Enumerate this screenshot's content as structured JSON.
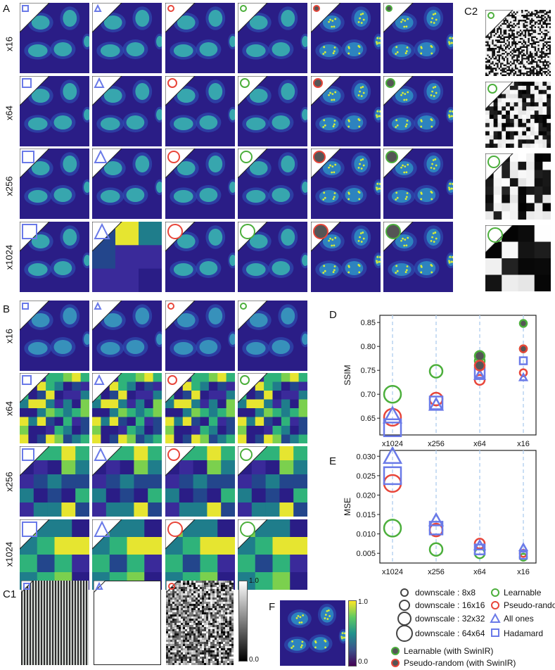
{
  "panels": {
    "A": "A",
    "B": "B",
    "C1": "C1",
    "C2": "C2",
    "D": "D",
    "E": "E",
    "F": "F"
  },
  "rows_A": [
    "x16",
    "x64",
    "x256",
    "x1024"
  ],
  "rows_B": [
    "x16",
    "x64",
    "x256",
    "x1024"
  ],
  "colorbar_gray": {
    "max": "1.0",
    "min": "0.0"
  },
  "colorbar_viridis": {
    "max": "1.0",
    "min": "0.0"
  },
  "legend": {
    "sizes": [
      "downscale : 8x8",
      "downscale : 16x16",
      "downscale : 32x32",
      "downscale : 64x64"
    ],
    "methods": [
      "Learnable",
      "Pseudo-random",
      "All ones",
      "Hadamard"
    ],
    "swin": [
      "Learnable (with SwinIR)",
      "Pseudo-random (with SwinIR)"
    ]
  },
  "colors": {
    "learnable": "#4caf3c",
    "pseudo_random": "#e8463a",
    "all_ones": "#6a7ae8",
    "hadamard": "#6a7ae8",
    "swin_fill": "#555555"
  },
  "chart_data": [
    {
      "type": "scatter",
      "panel": "D",
      "ylabel": "SSIM",
      "categories": [
        "x1024",
        "x256",
        "x64",
        "x16"
      ],
      "yticks": [
        "0.65",
        "0.70",
        "0.75",
        "0.80",
        "0.85"
      ],
      "ylim": [
        0.615,
        0.865
      ],
      "series": [
        {
          "name": "Learnable",
          "values": [
            0.7,
            0.748,
            0.77,
            0.795
          ]
        },
        {
          "name": "Pseudo-random",
          "values": [
            0.652,
            0.69,
            0.73,
            0.745
          ]
        },
        {
          "name": "All ones",
          "values": [
            0.655,
            0.678,
            0.74,
            0.735
          ]
        },
        {
          "name": "Hadamard",
          "values": [
            0.63,
            0.682,
            0.745,
            0.77
          ]
        },
        {
          "name": "Learnable (with SwinIR)",
          "values": [
            null,
            null,
            0.78,
            0.848
          ]
        },
        {
          "name": "Pseudo-random (with SwinIR)",
          "values": [
            null,
            null,
            0.76,
            0.795
          ]
        }
      ]
    },
    {
      "type": "scatter",
      "panel": "E",
      "ylabel": "MSE",
      "categories": [
        "x1024",
        "x256",
        "x64",
        "x16"
      ],
      "yticks": [
        "0.005",
        "0.010",
        "0.015",
        "0.020",
        "0.025",
        "0.030"
      ],
      "ylim": [
        0.0025,
        0.0315
      ],
      "series": [
        {
          "name": "Learnable",
          "values": [
            0.0115,
            0.006,
            0.005,
            0.004
          ]
        },
        {
          "name": "Pseudo-random",
          "values": [
            0.023,
            0.011,
            0.0075,
            0.005
          ]
        },
        {
          "name": "All ones",
          "values": [
            0.03,
            0.0135,
            0.007,
            0.0065
          ]
        },
        {
          "name": "Hadamard",
          "values": [
            0.025,
            0.0115,
            0.006,
            0.0045
          ]
        }
      ]
    }
  ]
}
